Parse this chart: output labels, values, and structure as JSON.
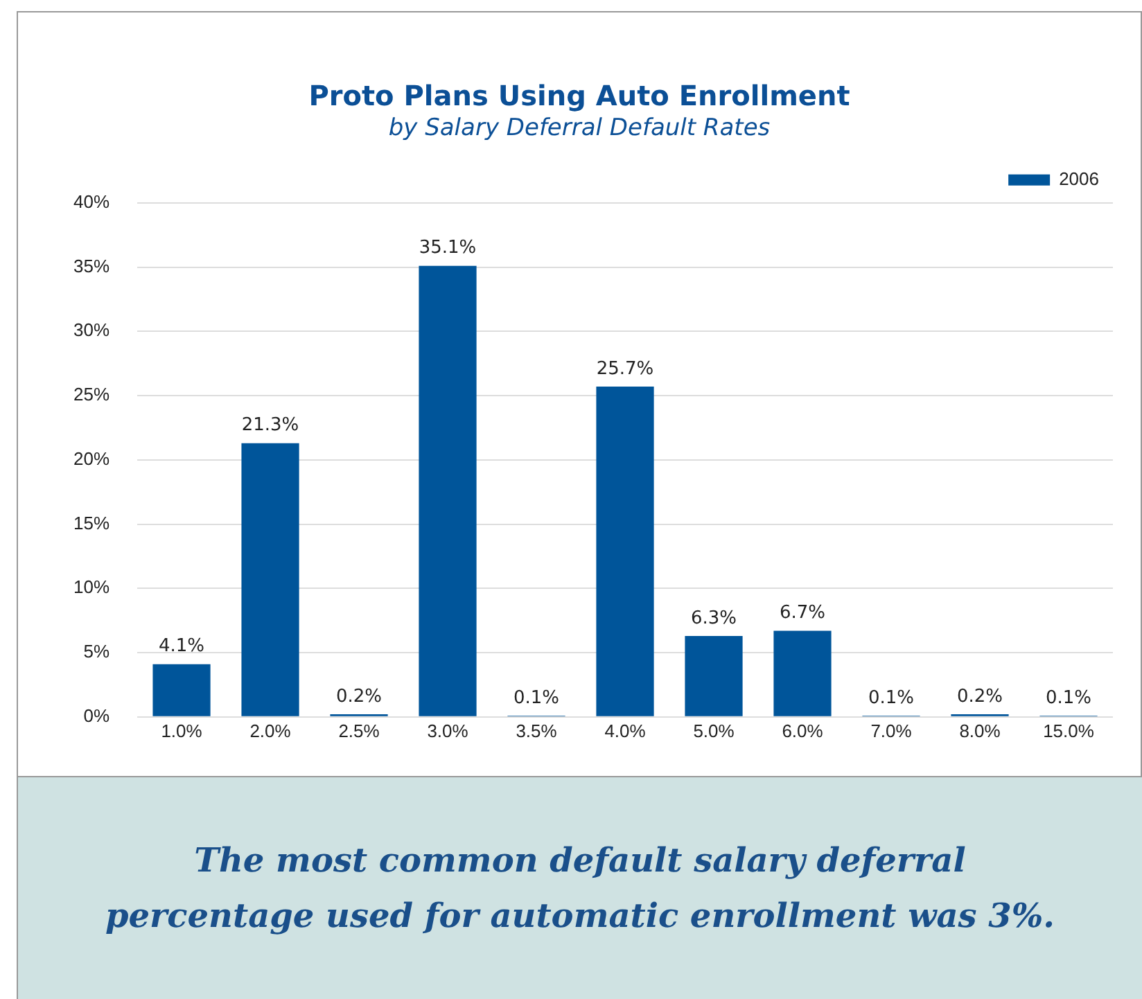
{
  "chart_data": {
    "type": "bar",
    "title": "Proto Plans Using Auto Enrollment",
    "subtitle": "by Salary Deferral Default Rates",
    "categories": [
      "1.0%",
      "2.0%",
      "2.5%",
      "3.0%",
      "3.5%",
      "4.0%",
      "5.0%",
      "6.0%",
      "7.0%",
      "8.0%",
      "15.0%"
    ],
    "series": [
      {
        "name": "2006",
        "color": "#00559a",
        "values": [
          4.1,
          21.3,
          0.2,
          35.1,
          0.1,
          25.7,
          6.3,
          6.7,
          0.1,
          0.2,
          0.1
        ],
        "value_labels": [
          "4.1%",
          "21.3%",
          "0.2%",
          "35.1%",
          "0.1%",
          "25.7%",
          "6.3%",
          "6.7%",
          "0.1%",
          "0.2%",
          "0.1%"
        ]
      }
    ],
    "ylim": [
      0,
      40
    ],
    "yticks": [
      {
        "value": 0,
        "label": "0%"
      },
      {
        "value": 5,
        "label": "5%"
      },
      {
        "value": 10,
        "label": "10%"
      },
      {
        "value": 15,
        "label": "15%"
      },
      {
        "value": 20,
        "label": "20%"
      },
      {
        "value": 25,
        "label": "25%"
      },
      {
        "value": 30,
        "label": "30%"
      },
      {
        "value": 35,
        "label": "35%"
      },
      {
        "value": 40,
        "label": "40%"
      }
    ],
    "grid": "y",
    "legend": "top right",
    "annotations": [
      "The most common default salary deferral percentage used for automatic enrollment was 3%."
    ]
  }
}
